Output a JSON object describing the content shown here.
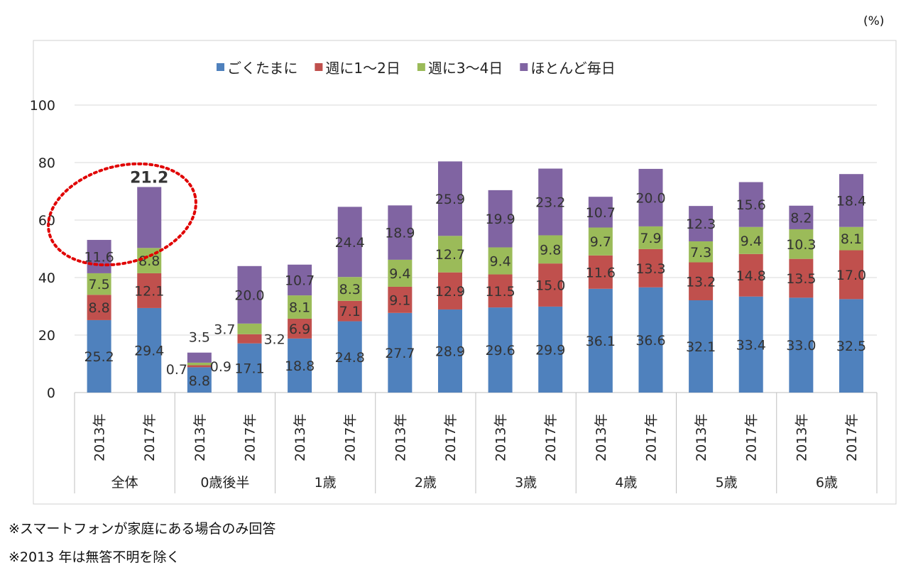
{
  "chart_data": {
    "type": "bar",
    "stacked": true,
    "unit": "(%)",
    "ylim": [
      0,
      100
    ],
    "yticks": [
      0,
      20,
      40,
      60,
      80,
      100
    ],
    "grid": true,
    "legend_position": "top",
    "groups": [
      "全体",
      "0歳後半",
      "1歳",
      "2歳",
      "3歳",
      "4歳",
      "5歳",
      "6歳"
    ],
    "years": [
      "2013年",
      "2017年"
    ],
    "series": [
      {
        "name": "ごくたまに",
        "color": "#4f81bd",
        "values": [
          25.2,
          29.4,
          8.8,
          17.1,
          18.8,
          24.8,
          27.7,
          28.9,
          29.6,
          29.9,
          36.1,
          36.6,
          32.1,
          33.4,
          33.0,
          32.5
        ]
      },
      {
        "name": "週に1～2日",
        "color": "#c0504d",
        "values": [
          8.8,
          12.1,
          0.7,
          3.2,
          6.9,
          7.1,
          9.1,
          12.9,
          11.5,
          15.0,
          11.6,
          13.3,
          13.2,
          14.8,
          13.5,
          17.0
        ]
      },
      {
        "name": "週に3～4日",
        "color": "#9bbb59",
        "values": [
          7.5,
          8.8,
          0.9,
          3.7,
          8.1,
          8.3,
          9.4,
          12.7,
          9.4,
          9.8,
          9.7,
          7.9,
          7.3,
          9.4,
          10.3,
          8.1
        ]
      },
      {
        "name": "ほとんど毎日",
        "color": "#8064a2",
        "values": [
          11.6,
          21.2,
          3.5,
          20.0,
          10.7,
          24.4,
          18.9,
          25.9,
          19.9,
          23.2,
          10.7,
          20.0,
          12.3,
          15.6,
          8.2,
          18.4
        ]
      }
    ],
    "highlight": {
      "label": "21.2",
      "color": "#e00000"
    }
  },
  "notes": [
    "※スマートフォンが家庭にある場合のみ回答",
    "※2013 年は無答不明を除く"
  ]
}
